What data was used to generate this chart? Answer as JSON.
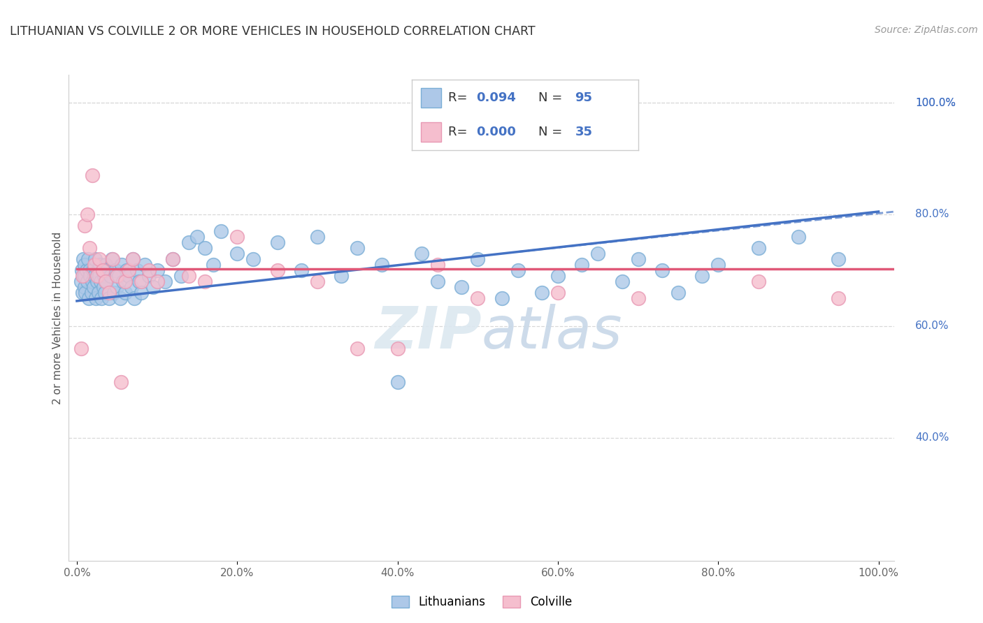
{
  "title": "LITHUANIAN VS COLVILLE 2 OR MORE VEHICLES IN HOUSEHOLD CORRELATION CHART",
  "source": "Source: ZipAtlas.com",
  "ylabel": "2 or more Vehicles in Household",
  "xlim": [
    -0.01,
    1.02
  ],
  "ylim": [
    0.18,
    1.05
  ],
  "xticks": [
    0.0,
    0.2,
    0.4,
    0.6,
    0.8,
    1.0
  ],
  "xticklabels": [
    "0.0%",
    "20.0%",
    "40.0%",
    "60.0%",
    "80.0%",
    "100.0%"
  ],
  "yticks": [
    0.4,
    0.6,
    0.8,
    1.0
  ],
  "yticklabels": [
    "40.0%",
    "60.0%",
    "80.0%",
    "100.0%"
  ],
  "blue_color": "#adc8e8",
  "blue_edge_color": "#7aaed6",
  "pink_color": "#f5bece",
  "pink_edge_color": "#e899b4",
  "trend_blue_color": "#4472c4",
  "trend_pink_color": "#e05878",
  "watermark_color": "#dce8f0",
  "legend_R_blue": "0.094",
  "legend_N_blue": "95",
  "legend_R_pink": "0.000",
  "legend_N_pink": "35",
  "background_color": "#ffffff",
  "grid_color": "#d8d8d8",
  "blue_trend_start_y": 0.645,
  "blue_trend_end_y": 0.805,
  "pink_trend_y": 0.703,
  "blue_x": [
    0.005,
    0.006,
    0.007,
    0.008,
    0.009,
    0.01,
    0.01,
    0.01,
    0.011,
    0.012,
    0.013,
    0.014,
    0.015,
    0.016,
    0.017,
    0.018,
    0.019,
    0.02,
    0.021,
    0.022,
    0.023,
    0.024,
    0.025,
    0.026,
    0.027,
    0.028,
    0.029,
    0.03,
    0.031,
    0.032,
    0.033,
    0.034,
    0.035,
    0.036,
    0.037,
    0.038,
    0.04,
    0.042,
    0.044,
    0.046,
    0.048,
    0.05,
    0.052,
    0.054,
    0.056,
    0.058,
    0.06,
    0.062,
    0.065,
    0.068,
    0.07,
    0.072,
    0.075,
    0.078,
    0.08,
    0.085,
    0.09,
    0.095,
    0.1,
    0.11,
    0.12,
    0.13,
    0.14,
    0.15,
    0.16,
    0.17,
    0.18,
    0.2,
    0.22,
    0.25,
    0.28,
    0.3,
    0.33,
    0.35,
    0.38,
    0.4,
    0.43,
    0.45,
    0.48,
    0.5,
    0.53,
    0.55,
    0.58,
    0.6,
    0.63,
    0.65,
    0.68,
    0.7,
    0.73,
    0.75,
    0.78,
    0.8,
    0.85,
    0.9,
    0.95
  ],
  "blue_y": [
    0.68,
    0.7,
    0.66,
    0.72,
    0.69,
    0.67,
    0.71,
    0.69,
    0.66,
    0.7,
    0.68,
    0.72,
    0.65,
    0.7,
    0.69,
    0.66,
    0.68,
    0.7,
    0.67,
    0.69,
    0.72,
    0.65,
    0.68,
    0.7,
    0.66,
    0.69,
    0.71,
    0.68,
    0.65,
    0.7,
    0.67,
    0.69,
    0.66,
    0.71,
    0.68,
    0.7,
    0.65,
    0.69,
    0.72,
    0.66,
    0.7,
    0.67,
    0.69,
    0.65,
    0.71,
    0.68,
    0.66,
    0.7,
    0.69,
    0.67,
    0.72,
    0.65,
    0.7,
    0.68,
    0.66,
    0.71,
    0.69,
    0.67,
    0.7,
    0.68,
    0.72,
    0.69,
    0.75,
    0.76,
    0.74,
    0.71,
    0.77,
    0.73,
    0.72,
    0.75,
    0.7,
    0.76,
    0.69,
    0.74,
    0.71,
    0.5,
    0.73,
    0.68,
    0.67,
    0.72,
    0.65,
    0.7,
    0.66,
    0.69,
    0.71,
    0.73,
    0.68,
    0.72,
    0.7,
    0.66,
    0.69,
    0.71,
    0.74,
    0.76,
    0.72
  ],
  "pink_x": [
    0.005,
    0.007,
    0.01,
    0.013,
    0.016,
    0.019,
    0.022,
    0.025,
    0.028,
    0.032,
    0.036,
    0.04,
    0.045,
    0.05,
    0.055,
    0.06,
    0.065,
    0.07,
    0.08,
    0.09,
    0.1,
    0.12,
    0.14,
    0.16,
    0.2,
    0.25,
    0.3,
    0.35,
    0.4,
    0.45,
    0.5,
    0.6,
    0.7,
    0.85,
    0.95
  ],
  "pink_y": [
    0.56,
    0.69,
    0.78,
    0.8,
    0.74,
    0.87,
    0.71,
    0.69,
    0.72,
    0.7,
    0.68,
    0.66,
    0.72,
    0.69,
    0.5,
    0.68,
    0.7,
    0.72,
    0.68,
    0.7,
    0.68,
    0.72,
    0.69,
    0.68,
    0.76,
    0.7,
    0.68,
    0.56,
    0.56,
    0.71,
    0.65,
    0.66,
    0.65,
    0.68,
    0.65
  ]
}
